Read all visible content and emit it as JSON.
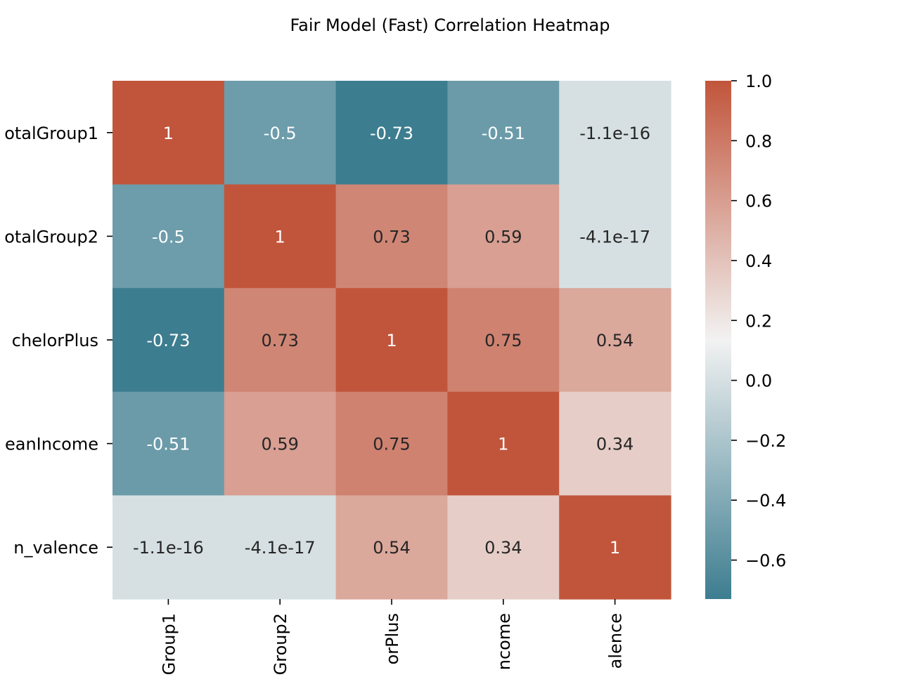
{
  "chart_data": {
    "type": "heatmap",
    "title": "Fair Model (Fast) Correlation Heatmap",
    "row_labels": [
      "otalGroup1",
      "otalGroup2",
      "chelorPlus",
      "eanIncome",
      "n_valence"
    ],
    "column_labels": [
      "Group1",
      "Group2",
      "orPlus",
      "ncome",
      "alence"
    ],
    "values": [
      [
        1,
        -0.5,
        -0.73,
        -0.51,
        -1.1e-16
      ],
      [
        -0.5,
        1,
        0.73,
        0.59,
        -4.1e-17
      ],
      [
        -0.73,
        0.73,
        1,
        0.75,
        0.54
      ],
      [
        -0.51,
        0.59,
        0.75,
        1,
        0.34
      ],
      [
        -1.1e-16,
        -4.1e-17,
        0.54,
        0.34,
        1
      ]
    ],
    "annotations": [
      [
        "1",
        "-0.5",
        "-0.73",
        "-0.51",
        "-1.1e-16"
      ],
      [
        "-0.5",
        "1",
        "0.73",
        "0.59",
        "-4.1e-17"
      ],
      [
        "-0.73",
        "0.73",
        "1",
        "0.75",
        "0.54"
      ],
      [
        "-0.51",
        "0.59",
        "0.75",
        "1",
        "0.34"
      ],
      [
        "-1.1e-16",
        "-4.1e-17",
        "0.54",
        "0.34",
        "1"
      ]
    ],
    "colorbar": {
      "vmin": -0.73,
      "vmax": 1.0,
      "ticks": [
        1.0,
        0.8,
        0.6,
        0.4,
        0.2,
        0.0,
        -0.2,
        -0.4,
        -0.6
      ],
      "tick_labels": [
        "1.0",
        "0.8",
        "0.6",
        "0.4",
        "0.2",
        "0.0",
        "−0.2",
        "−0.4",
        "−0.6"
      ]
    },
    "colormap": {
      "negative_end": "#3d7d90",
      "center": "#f2f2f2",
      "positive_end": "#c1553b"
    },
    "annotation_colors": {
      "light": "#ffffff",
      "dark": "#262626"
    },
    "grid": false,
    "legend": "colorbar-right"
  }
}
